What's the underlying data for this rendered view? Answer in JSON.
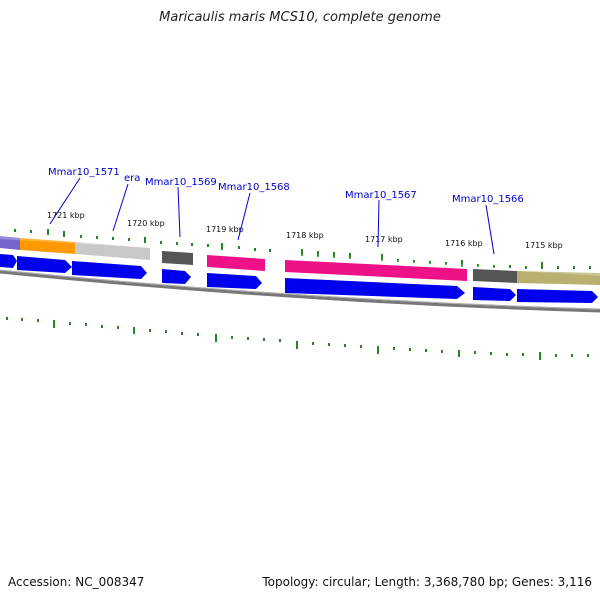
{
  "title": "Maricaulis maris MCS10, complete genome",
  "footer": {
    "accession": "Accession: NC_008347",
    "summary": "Topology: circular; Length: 3,368,780 bp; Genes: 3,116"
  },
  "colors": {
    "cds_blue": "#0000ee",
    "tick_green": "#228822",
    "backbone": "#777777",
    "label_blue": "#0000cc",
    "orange": "#ff9900",
    "pink": "#ee1188",
    "gray_dark": "#555555",
    "gray_light": "#c8c8c8",
    "olive": "#b8b070",
    "purple": "#7766cc"
  },
  "kbp_labels": [
    "1721 kbp",
    "1720 kbp",
    "1719 kbp",
    "1718 kbp",
    "1717 kbp",
    "1716 kbp",
    "1715 kbp"
  ],
  "gene_labels": [
    "Mmar10_1571",
    "era",
    "Mmar10_1569",
    "Mmar10_1568",
    "Mmar10_1567",
    "Mmar10_1566"
  ]
}
